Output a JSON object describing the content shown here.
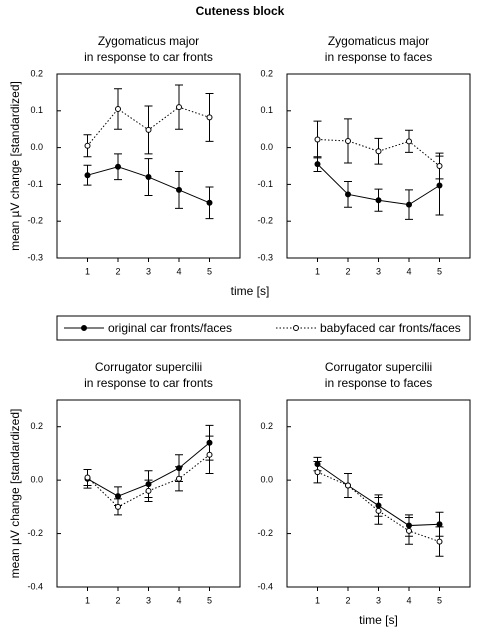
{
  "title": "Cuteness block",
  "legend": [
    "original car fronts/faces",
    "babyfaced car fronts/faces"
  ],
  "chart_data": [
    {
      "type": "line",
      "title": [
        "Zygomaticus major",
        "in response to car fronts"
      ],
      "ylabel": "mean µV change [standardized]",
      "x": [
        1,
        2,
        3,
        4,
        5
      ],
      "xlim": [
        0,
        6
      ],
      "xticks": [
        1,
        2,
        3,
        4,
        5
      ],
      "ylim": [
        -0.3,
        0.2
      ],
      "yticks": [
        -0.3,
        -0.2,
        -0.1,
        {
          "value": 0,
          "label": "0.0"
        },
        0.1,
        0.2
      ],
      "series": [
        {
          "values": [
            -0.075,
            -0.052,
            -0.08,
            -0.115,
            -0.15
          ],
          "errors": [
            0.027,
            0.035,
            0.05,
            0.05,
            0.043
          ]
        },
        {
          "values": [
            0.005,
            0.105,
            0.048,
            0.11,
            0.082
          ],
          "errors": [
            0.03,
            0.055,
            0.065,
            0.06,
            0.065
          ]
        }
      ]
    },
    {
      "type": "line",
      "title": [
        "Zygomaticus major",
        "in response to faces"
      ],
      "xlabel": "time [s]",
      "x": [
        1,
        2,
        3,
        4,
        5
      ],
      "xlim": [
        0,
        6
      ],
      "xticks": [
        1,
        2,
        3,
        4,
        5
      ],
      "ylim": [
        -0.3,
        0.2
      ],
      "yticks": [
        -0.3,
        -0.2,
        -0.1,
        {
          "value": 0,
          "label": "0.0"
        },
        0.1,
        0.2
      ],
      "series": [
        {
          "values": [
            -0.045,
            -0.127,
            -0.143,
            -0.155,
            -0.103
          ],
          "errors": [
            0.02,
            0.035,
            0.03,
            0.04,
            0.08
          ]
        },
        {
          "values": [
            0.022,
            0.018,
            -0.01,
            0.017,
            -0.05
          ],
          "errors": [
            0.05,
            0.06,
            0.035,
            0.03,
            0.035
          ]
        }
      ]
    },
    {
      "type": "line",
      "title": [
        "Corrugator supercilii",
        "in  response to car fronts"
      ],
      "ylabel": "mean µV change [standardized]",
      "x": [
        1,
        2,
        3,
        4,
        5
      ],
      "xlim": [
        0,
        6
      ],
      "xticks": [
        1,
        2,
        3,
        4,
        5
      ],
      "ylim": [
        -0.4,
        0.3
      ],
      "yticks": [
        -0.4,
        -0.2,
        {
          "value": 0,
          "label": "0.0"
        },
        0.2
      ],
      "series": [
        {
          "values": [
            0.005,
            -0.06,
            -0.015,
            0.045,
            0.14
          ],
          "errors": [
            0.035,
            0.035,
            0.05,
            0.05,
            0.065
          ]
        },
        {
          "values": [
            0.01,
            -0.1,
            -0.04,
            0.005,
            0.095
          ],
          "errors": [
            0.03,
            0.03,
            0.04,
            0.045,
            0.07
          ]
        }
      ]
    },
    {
      "type": "line",
      "title": [
        "Corrugator supercilii",
        "in  response to faces"
      ],
      "xlabel": "time [s]",
      "x": [
        1,
        2,
        3,
        4,
        5
      ],
      "xlim": [
        0,
        6
      ],
      "xticks": [
        1,
        2,
        3,
        4,
        5
      ],
      "ylim": [
        -0.4,
        0.3
      ],
      "yticks": [
        -0.4,
        -0.2,
        {
          "value": 0,
          "label": "0.0"
        },
        0.2
      ],
      "series": [
        {
          "values": [
            0.06,
            -0.02,
            -0.095,
            -0.17,
            -0.165
          ],
          "errors": [
            0.025,
            0.045,
            0.04,
            0.04,
            0.045
          ]
        },
        {
          "values": [
            0.03,
            -0.02,
            -0.115,
            -0.19,
            -0.23
          ],
          "errors": [
            0.04,
            0.045,
            0.05,
            0.05,
            0.055
          ]
        }
      ]
    }
  ]
}
